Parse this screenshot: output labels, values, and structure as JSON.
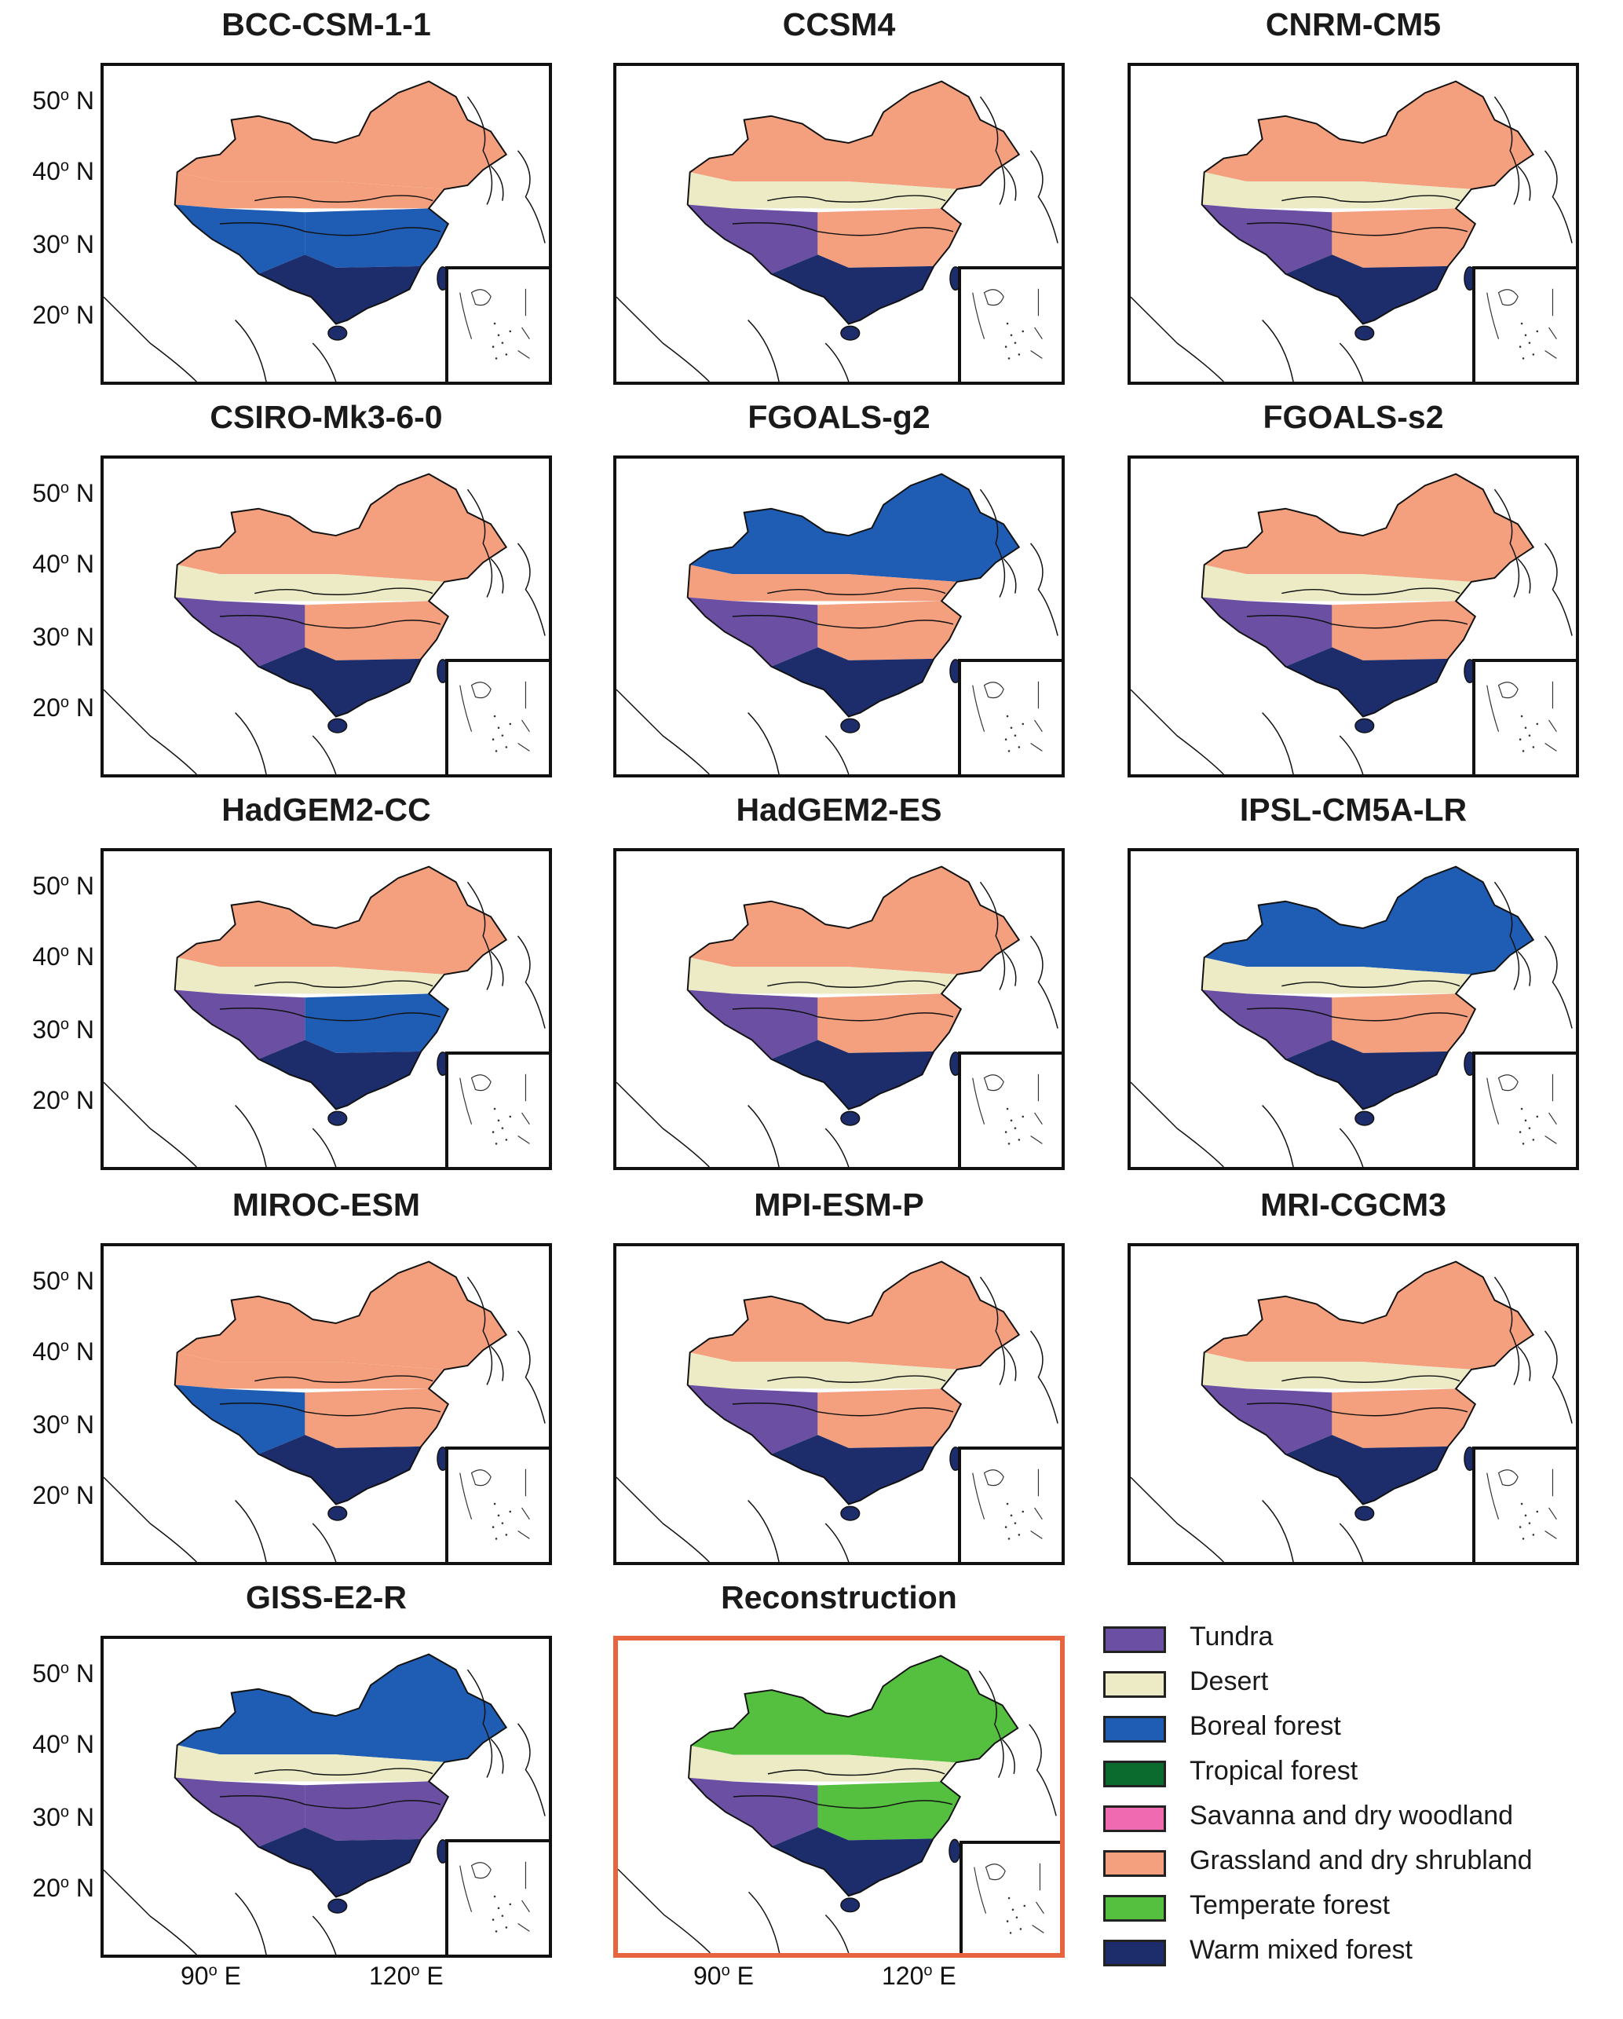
{
  "colors": {
    "Tundra": "#6a4fa3",
    "Desert": "#ecebc6",
    "Boreal forest": "#1f5cb3",
    "Tropical forest": "#0b6b2f",
    "Savanna and dry woodland": "#ef6ab0",
    "Grassland and dry shrubland": "#f4a07e",
    "Temperate forest": "#55bf3f",
    "Warm mixed forest": "#1d2d6b",
    "reconstruction_border": "#e8643f"
  },
  "lat_labels": [
    "50",
    "40",
    "30",
    "20"
  ],
  "lat_suffix": "N",
  "lon_labels": [
    "90",
    "120"
  ],
  "lon_suffix": "E",
  "degree_symbol": "o",
  "panels": [
    {
      "title": "BCC-CSM-1-1",
      "pattern": [
        "G",
        "G",
        "B",
        "B",
        "W"
      ]
    },
    {
      "title": "CCSM4",
      "pattern": [
        "G",
        "D",
        "T",
        "G",
        "W"
      ]
    },
    {
      "title": "CNRM-CM5",
      "pattern": [
        "G",
        "D",
        "T",
        "G",
        "W"
      ]
    },
    {
      "title": "CSIRO-Mk3-6-0",
      "pattern": [
        "G",
        "D",
        "T",
        "G",
        "W"
      ]
    },
    {
      "title": "FGOALS-g2",
      "pattern": [
        "B",
        "G",
        "T",
        "G",
        "W"
      ]
    },
    {
      "title": "FGOALS-s2",
      "pattern": [
        "G",
        "D",
        "T",
        "G",
        "W"
      ]
    },
    {
      "title": "HadGEM2-CC",
      "pattern": [
        "G",
        "D",
        "T",
        "B",
        "W"
      ]
    },
    {
      "title": "HadGEM2-ES",
      "pattern": [
        "G",
        "D",
        "T",
        "G",
        "W"
      ]
    },
    {
      "title": "IPSL-CM5A-LR",
      "pattern": [
        "B",
        "D",
        "T",
        "G",
        "W"
      ]
    },
    {
      "title": "MIROC-ESM",
      "pattern": [
        "G",
        "G",
        "B",
        "G",
        "W"
      ]
    },
    {
      "title": "MPI-ESM-P",
      "pattern": [
        "G",
        "D",
        "T",
        "G",
        "W"
      ]
    },
    {
      "title": "MRI-CGCM3",
      "pattern": [
        "G",
        "D",
        "T",
        "G",
        "W"
      ]
    },
    {
      "title": "GISS-E2-R",
      "pattern": [
        "B",
        "D",
        "T",
        "T",
        "W"
      ]
    },
    {
      "title": "Reconstruction",
      "pattern": [
        "F",
        "D",
        "T",
        "F",
        "W"
      ]
    }
  ],
  "legend": [
    {
      "label": "Tundra",
      "color": "#6a4fa3"
    },
    {
      "label": "Desert",
      "color": "#ecebc6"
    },
    {
      "label": "Boreal forest",
      "color": "#1f5cb3"
    },
    {
      "label": "Tropical forest",
      "color": "#0b6b2f"
    },
    {
      "label": "Savanna and dry woodland",
      "color": "#ef6ab0"
    },
    {
      "label": "Grassland and dry shrubland",
      "color": "#f4a07e"
    },
    {
      "label": "Temperate forest",
      "color": "#55bf3f"
    },
    {
      "label": "Warm mixed forest",
      "color": "#1d2d6b"
    }
  ]
}
